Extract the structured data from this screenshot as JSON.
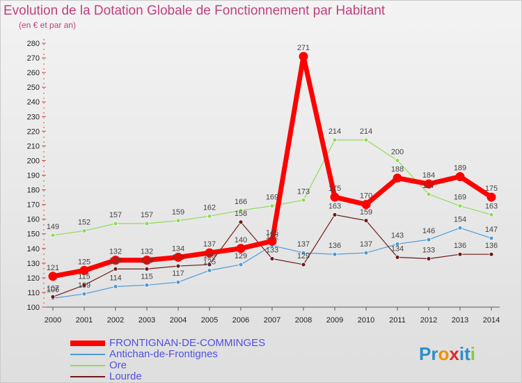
{
  "chart_data": {
    "type": "line",
    "title": "Evolution de la Dotation Globale de Fonctionnement par Habitant",
    "subtitle": "(en € et par an)",
    "x": [
      "2000",
      "2001",
      "2002",
      "2003",
      "2004",
      "2005",
      "2006",
      "2007",
      "2008",
      "2009",
      "2010",
      "2011",
      "2012",
      "2013",
      "2014"
    ],
    "ylim": [
      100,
      280
    ],
    "yticks": [
      100,
      110,
      120,
      130,
      140,
      150,
      160,
      170,
      180,
      190,
      200,
      210,
      220,
      230,
      240,
      250,
      260,
      270,
      280
    ],
    "grid": false,
    "legend_position": "bottom-left",
    "series": [
      {
        "name": "FRONTIGNAN-DE-COMMINGES",
        "color": "#ff0000",
        "values": [
          121,
          125,
          132,
          132,
          134,
          137,
          140,
          145,
          271,
          175,
          170,
          188,
          184,
          189,
          175
        ]
      },
      {
        "name": "Antichan-de-Frontignes",
        "color": "#4f9bd6",
        "values": [
          106,
          109,
          114,
          115,
          117,
          125,
          129,
          142,
          137,
          136,
          137,
          143,
          146,
          154,
          147
        ]
      },
      {
        "name": "Ore",
        "color": "#8fdb5a",
        "values": [
          149,
          152,
          157,
          157,
          159,
          162,
          166,
          169,
          173,
          214,
          214,
          200,
          177,
          169,
          163
        ]
      },
      {
        "name": "Lourde",
        "color": "#6e1a1a",
        "values": [
          107,
          115,
          126,
          126,
          128,
          129,
          158,
          133,
          129,
          163,
          159,
          134,
          133,
          136,
          136
        ]
      }
    ]
  },
  "logo": {
    "p1": "Pr",
    "o": "o",
    "x": "x",
    "i1": "i",
    "t": "t",
    "i2": "i"
  }
}
